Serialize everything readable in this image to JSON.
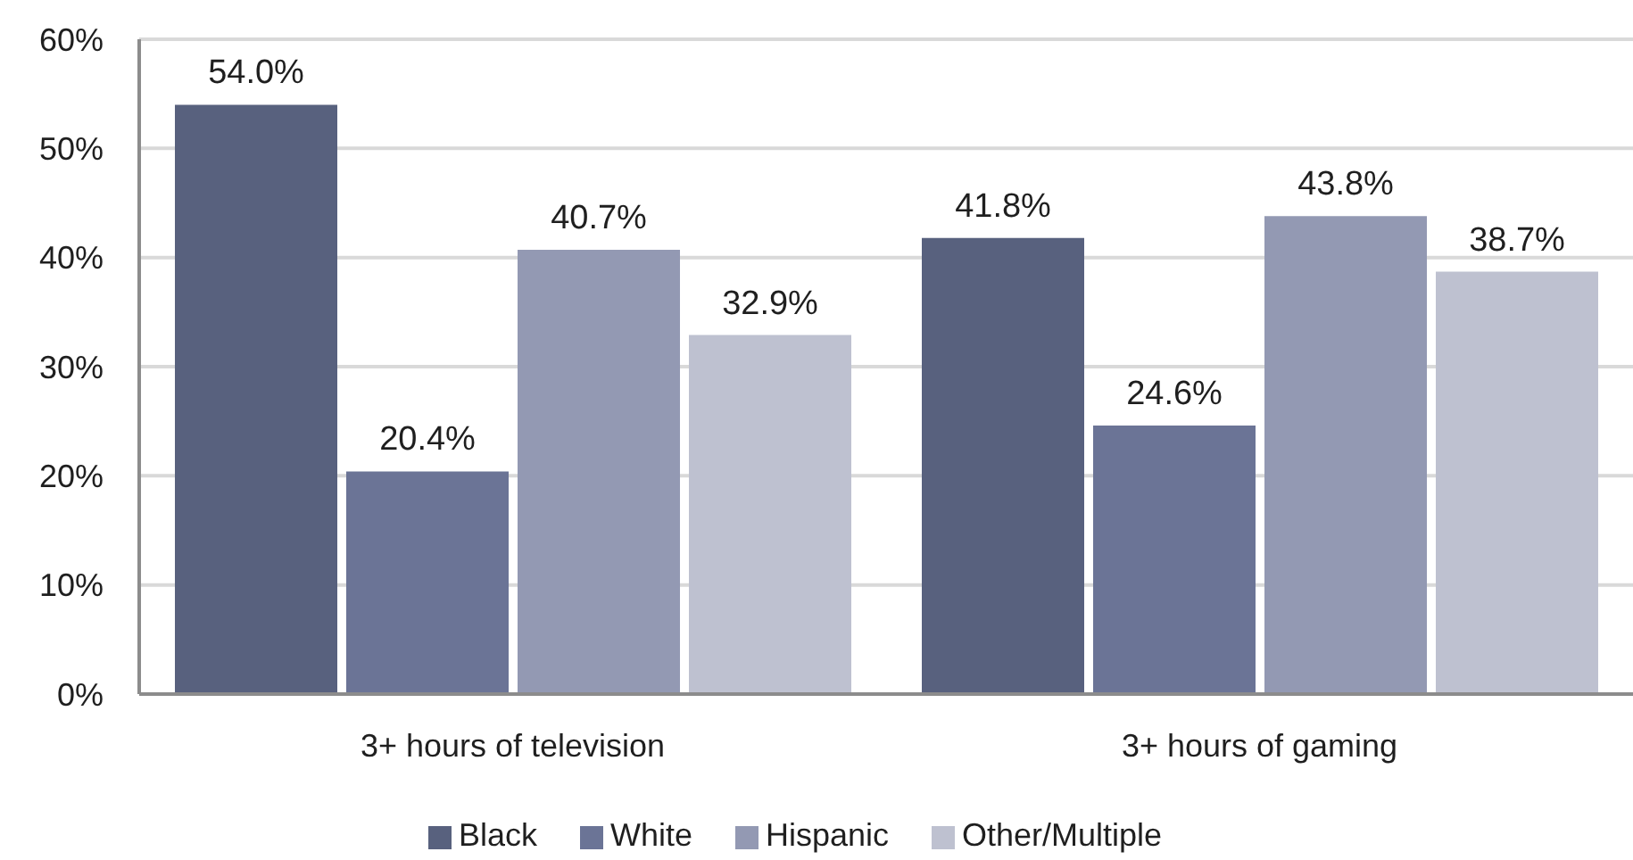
{
  "chart_data": {
    "type": "bar",
    "categories": [
      "3+ hours of television",
      "3+ hours of gaming"
    ],
    "series": [
      {
        "name": "Black",
        "color": "#58617e",
        "values": [
          54.0,
          41.8
        ],
        "value_labels": [
          "54.0%",
          "41.8%"
        ]
      },
      {
        "name": "White",
        "color": "#6b7496",
        "values": [
          20.4,
          24.6
        ],
        "value_labels": [
          "20.4%",
          "24.6%"
        ]
      },
      {
        "name": "Hispanic",
        "color": "#9399b3",
        "values": [
          40.7,
          43.8
        ],
        "value_labels": [
          "40.7%",
          "43.8%"
        ]
      },
      {
        "name": "Other/Multiple",
        "color": "#bec1d0",
        "values": [
          32.9,
          38.7
        ],
        "value_labels": [
          "32.9%",
          "38.7%"
        ]
      }
    ],
    "ylim": [
      0,
      60
    ],
    "yticks": [
      {
        "value": 0,
        "label": "0%"
      },
      {
        "value": 10,
        "label": "10%"
      },
      {
        "value": 20,
        "label": "20%"
      },
      {
        "value": 30,
        "label": "30%"
      },
      {
        "value": 40,
        "label": "40%"
      },
      {
        "value": 50,
        "label": "50%"
      },
      {
        "value": 60,
        "label": "60%"
      }
    ],
    "grid": "y",
    "legend": "bottom"
  }
}
